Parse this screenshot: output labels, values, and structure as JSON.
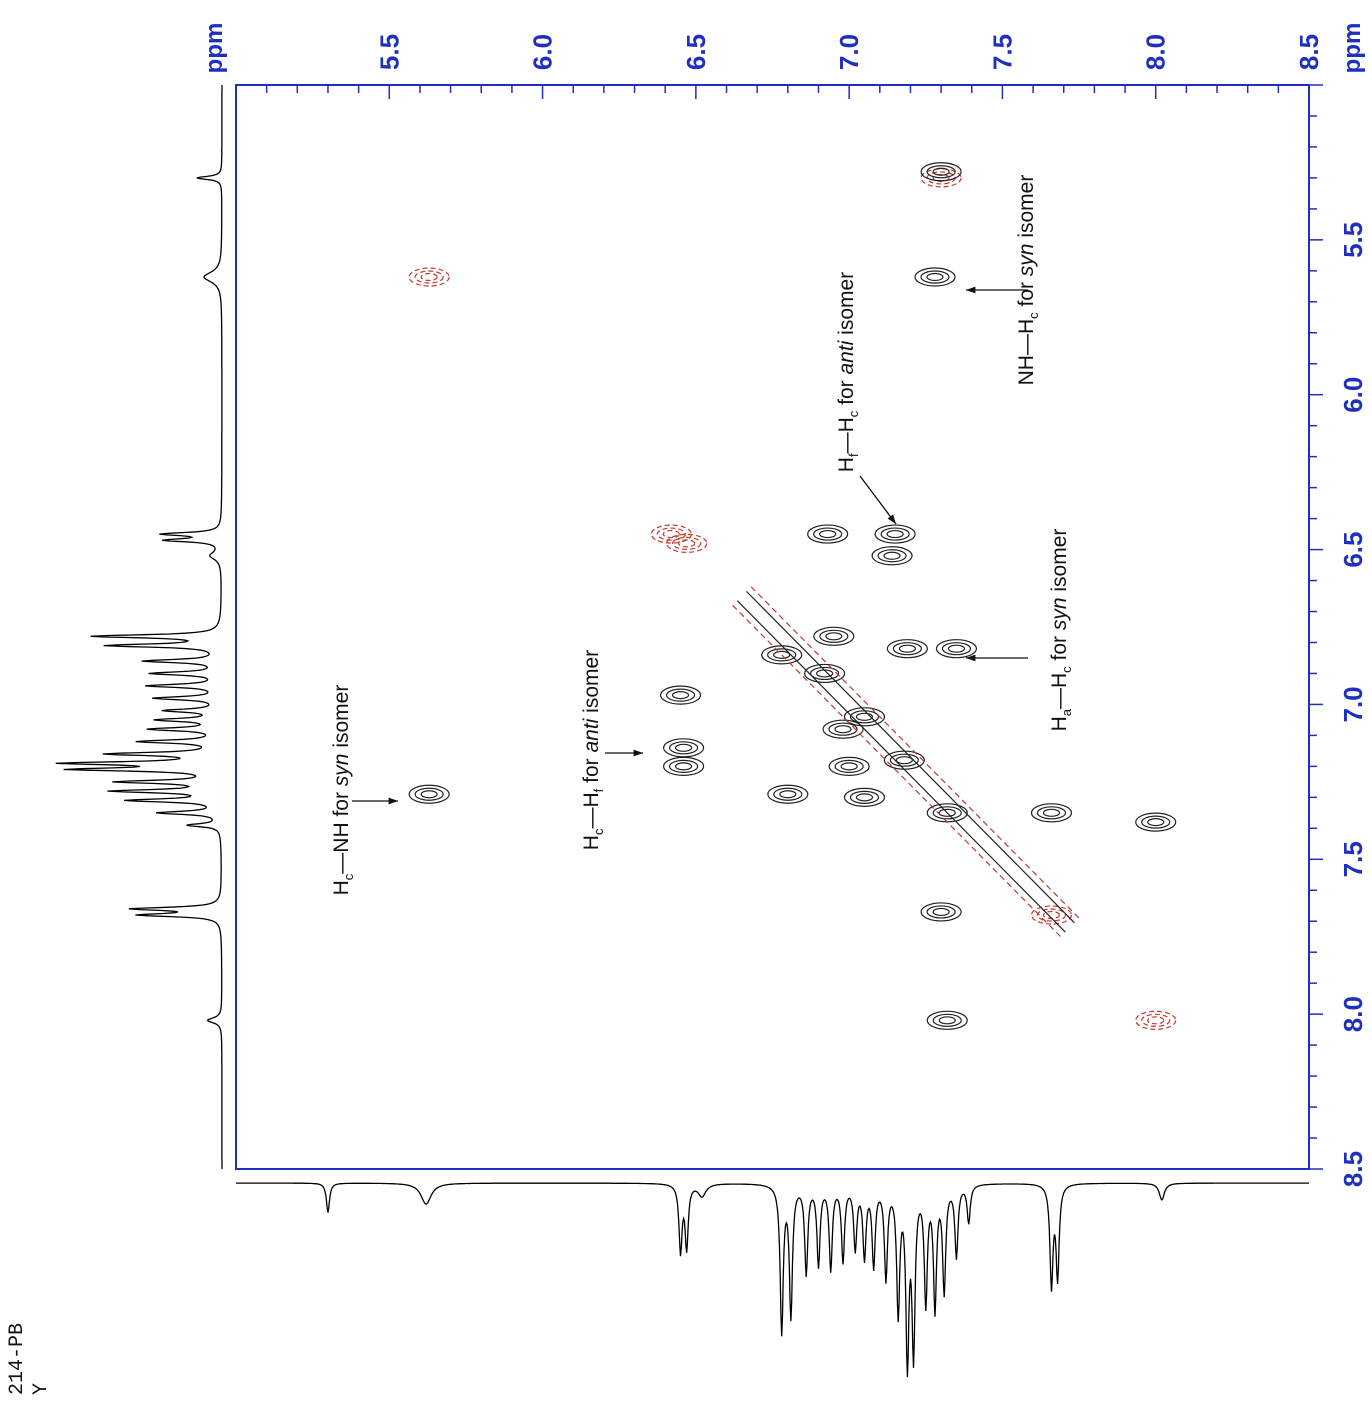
{
  "chart_data": {
    "type": "contour",
    "experiment_label_lines": [
      "214-PB",
      "Y"
    ],
    "x_axis": {
      "unit": "ppm",
      "ticks": [
        "5.5",
        "6.0",
        "6.5",
        "7.0",
        "7.5",
        "8.0",
        "8.5"
      ],
      "range": [
        5.0,
        8.5
      ]
    },
    "y_axis": {
      "unit": "ppm",
      "ticks": [
        "5.5",
        "6.0",
        "6.5",
        "7.0",
        "7.5",
        "8.0",
        "8.5"
      ],
      "range": [
        5.0,
        8.5
      ]
    },
    "colors": {
      "axis": "#1f2fbf",
      "positive_contour": "#222222",
      "negative_contour": "#c0392b",
      "trace": "#000000"
    },
    "cross_peaks": [
      {
        "x": 7.3,
        "y": 5.3,
        "sign": "negative"
      },
      {
        "x": 5.63,
        "y": 5.62,
        "sign": "negative"
      },
      {
        "x": 7.28,
        "y": 5.62,
        "sign": "positive"
      },
      {
        "x": 7.3,
        "y": 5.28,
        "sign": "positive"
      },
      {
        "x": 6.93,
        "y": 6.45,
        "sign": "positive"
      },
      {
        "x": 7.15,
        "y": 6.45,
        "sign": "positive"
      },
      {
        "x": 7.14,
        "y": 6.52,
        "sign": "positive"
      },
      {
        "x": 6.42,
        "y": 6.45,
        "sign": "negative"
      },
      {
        "x": 6.47,
        "y": 6.48,
        "sign": "negative"
      },
      {
        "x": 6.95,
        "y": 6.78,
        "sign": "positive"
      },
      {
        "x": 7.19,
        "y": 6.82,
        "sign": "positive"
      },
      {
        "x": 7.35,
        "y": 6.82,
        "sign": "positive"
      },
      {
        "x": 6.78,
        "y": 6.84,
        "sign": "positive"
      },
      {
        "x": 6.92,
        "y": 6.9,
        "sign": "positive"
      },
      {
        "x": 6.45,
        "y": 6.97,
        "sign": "positive"
      },
      {
        "x": 6.46,
        "y": 7.14,
        "sign": "positive"
      },
      {
        "x": 6.46,
        "y": 7.2,
        "sign": "positive"
      },
      {
        "x": 7.05,
        "y": 7.04,
        "sign": "positive"
      },
      {
        "x": 6.98,
        "y": 7.08,
        "sign": "positive"
      },
      {
        "x": 7.18,
        "y": 7.18,
        "sign": "positive"
      },
      {
        "x": 7.0,
        "y": 7.2,
        "sign": "positive"
      },
      {
        "x": 6.8,
        "y": 7.29,
        "sign": "positive"
      },
      {
        "x": 7.05,
        "y": 7.3,
        "sign": "positive"
      },
      {
        "x": 7.32,
        "y": 7.35,
        "sign": "positive"
      },
      {
        "x": 7.66,
        "y": 7.35,
        "sign": "positive"
      },
      {
        "x": 8.0,
        "y": 7.38,
        "sign": "positive"
      },
      {
        "x": 7.3,
        "y": 7.67,
        "sign": "positive"
      },
      {
        "x": 7.66,
        "y": 7.68,
        "sign": "negative"
      },
      {
        "x": 7.32,
        "y": 8.02,
        "sign": "positive"
      },
      {
        "x": 8.0,
        "y": 8.02,
        "sign": "negative"
      },
      {
        "x": 5.63,
        "y": 7.29,
        "sign": "positive"
      }
    ],
    "annotations": [
      {
        "main": "H",
        "sub": "c",
        "rest_plain": "—NH for ",
        "italic": "syn",
        "tail": " isomer"
      },
      {
        "main": "H",
        "sub": "c",
        "rest_plain": "—H",
        "sub2": "f",
        "rest2": " for ",
        "italic": "anti",
        "tail": " isomer"
      },
      {
        "main": "H",
        "sub": "f",
        "rest_plain": "—H",
        "sub2": "c",
        "rest2": " for ",
        "italic": "anti",
        "tail": " isomer"
      },
      {
        "main": "NH—H",
        "sub": "c",
        "rest_plain": " for ",
        "italic": "syn",
        "tail": " isomer"
      },
      {
        "main": "H",
        "sub": "a",
        "rest_plain": "—H",
        "sub2": "c",
        "rest2": " for ",
        "italic": "syn",
        "tail": " isomer"
      }
    ],
    "projection_peaks": [
      {
        "ppm": 5.3,
        "h": 0.14,
        "w": 0.006
      },
      {
        "ppm": 5.62,
        "h": 0.1,
        "w": 0.02
      },
      {
        "ppm": 6.45,
        "h": 0.32,
        "w": 0.006
      },
      {
        "ppm": 6.47,
        "h": 0.3,
        "w": 0.006
      },
      {
        "ppm": 6.52,
        "h": 0.06,
        "w": 0.015
      },
      {
        "ppm": 6.78,
        "h": 0.7,
        "w": 0.006
      },
      {
        "ppm": 6.81,
        "h": 0.62,
        "w": 0.006
      },
      {
        "ppm": 6.86,
        "h": 0.42,
        "w": 0.006
      },
      {
        "ppm": 6.9,
        "h": 0.38,
        "w": 0.006
      },
      {
        "ppm": 6.94,
        "h": 0.4,
        "w": 0.006
      },
      {
        "ppm": 6.98,
        "h": 0.36,
        "w": 0.006
      },
      {
        "ppm": 7.02,
        "h": 0.3,
        "w": 0.006
      },
      {
        "ppm": 7.05,
        "h": 0.34,
        "w": 0.006
      },
      {
        "ppm": 7.08,
        "h": 0.38,
        "w": 0.006
      },
      {
        "ppm": 7.12,
        "h": 0.44,
        "w": 0.006
      },
      {
        "ppm": 7.16,
        "h": 0.6,
        "w": 0.006
      },
      {
        "ppm": 7.19,
        "h": 0.82,
        "w": 0.006
      },
      {
        "ppm": 7.21,
        "h": 0.78,
        "w": 0.006
      },
      {
        "ppm": 7.25,
        "h": 0.55,
        "w": 0.006
      },
      {
        "ppm": 7.28,
        "h": 0.58,
        "w": 0.006
      },
      {
        "ppm": 7.31,
        "h": 0.5,
        "w": 0.006
      },
      {
        "ppm": 7.35,
        "h": 0.34,
        "w": 0.006
      },
      {
        "ppm": 7.39,
        "h": 0.18,
        "w": 0.006
      },
      {
        "ppm": 7.66,
        "h": 0.48,
        "w": 0.006
      },
      {
        "ppm": 7.68,
        "h": 0.44,
        "w": 0.006
      },
      {
        "ppm": 8.02,
        "h": 0.08,
        "w": 0.01
      }
    ]
  }
}
